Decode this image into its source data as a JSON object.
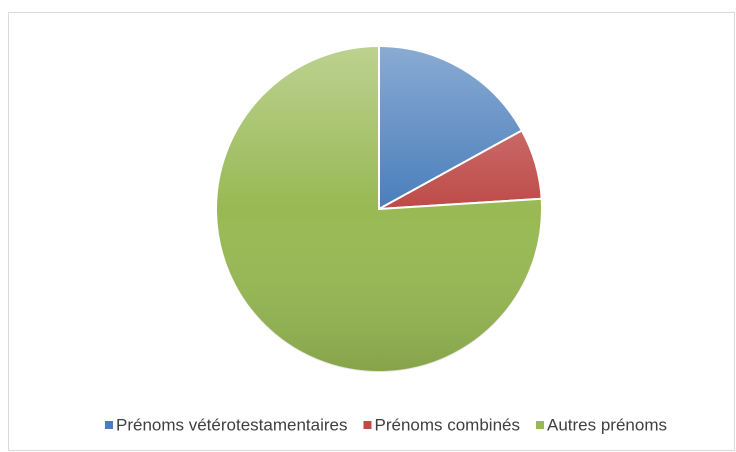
{
  "chart_data": {
    "type": "pie",
    "categories": [
      "Prénoms vétérotestamentaires",
      "Prénoms combinés",
      "Autres prénoms"
    ],
    "values": [
      17,
      7,
      76
    ],
    "colors": [
      "#4a7ebb",
      "#be4b48",
      "#98b954"
    ],
    "legend": "bottom"
  }
}
